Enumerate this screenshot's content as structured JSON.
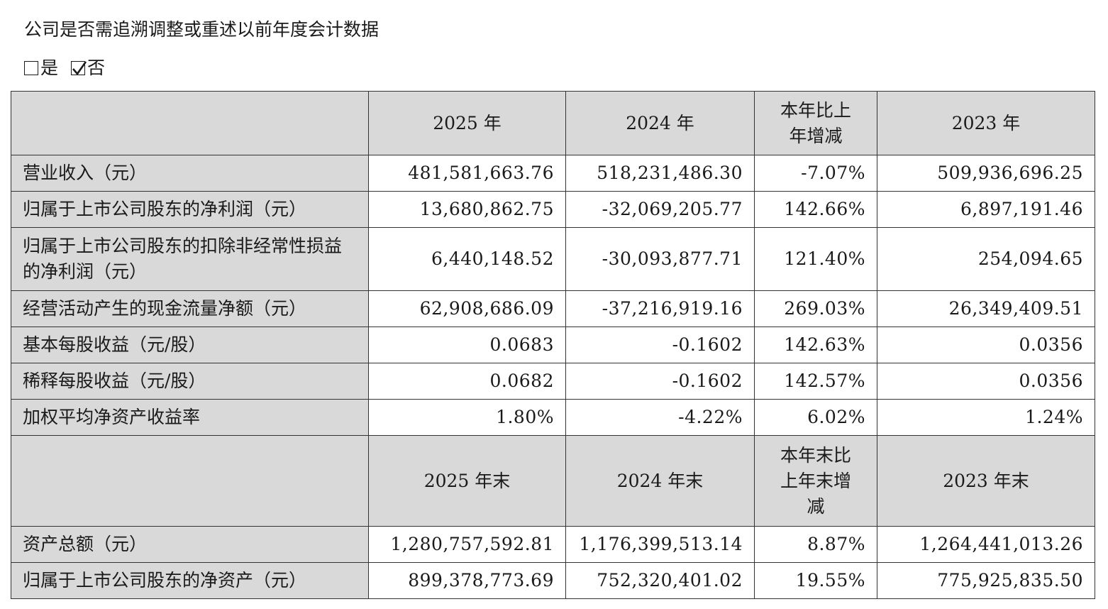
{
  "question": "公司是否需追溯调整或重述以前年度会计数据",
  "options": [
    {
      "label": "是",
      "checked": false
    },
    {
      "label": "否",
      "checked": true
    }
  ],
  "table": {
    "header1": [
      "",
      "2025 年",
      "2024 年",
      "本年比上年增减",
      "2023 年"
    ],
    "rows1": [
      {
        "label": "营业收入（元）",
        "values": [
          "481,581,663.76",
          "518,231,486.30",
          "-7.07%",
          "509,936,696.25"
        ]
      },
      {
        "label": "归属于上市公司股东的净利润（元）",
        "values": [
          "13,680,862.75",
          "-32,069,205.77",
          "142.66%",
          "6,897,191.46"
        ]
      },
      {
        "label": "归属于上市公司股东的扣除非经常性损益的净利润（元）",
        "values": [
          "6,440,148.52",
          "-30,093,877.71",
          "121.40%",
          "254,094.65"
        ]
      },
      {
        "label": "经营活动产生的现金流量净额（元）",
        "values": [
          "62,908,686.09",
          "-37,216,919.16",
          "269.03%",
          "26,349,409.51"
        ]
      },
      {
        "label": "基本每股收益（元/股）",
        "values": [
          "0.0683",
          "-0.1602",
          "142.63%",
          "0.0356"
        ]
      },
      {
        "label": "稀释每股收益（元/股）",
        "values": [
          "0.0682",
          "-0.1602",
          "142.57%",
          "0.0356"
        ]
      },
      {
        "label": "加权平均净资产收益率",
        "values": [
          "1.80%",
          "-4.22%",
          "6.02%",
          "1.24%"
        ]
      }
    ],
    "header2": [
      "",
      "2025 年末",
      "2024 年末",
      "本年末比上年末增减",
      "2023 年末"
    ],
    "rows2": [
      {
        "label": "资产总额（元）",
        "values": [
          "1,280,757,592.81",
          "1,176,399,513.14",
          "8.87%",
          "1,264,441,013.26"
        ]
      },
      {
        "label": "归属于上市公司股东的净资产（元）",
        "values": [
          "899,378,773.69",
          "752,320,401.02",
          "19.55%",
          "775,925,835.50"
        ]
      }
    ]
  }
}
